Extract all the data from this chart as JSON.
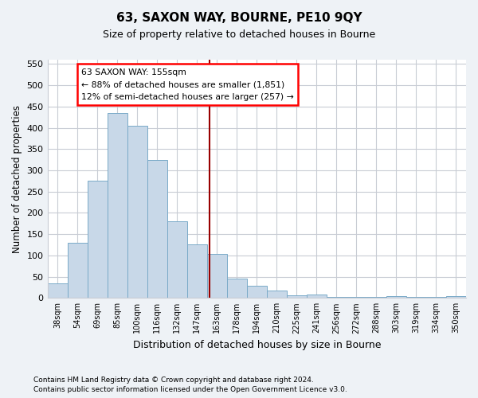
{
  "title": "63, SAXON WAY, BOURNE, PE10 9QY",
  "subtitle": "Size of property relative to detached houses in Bourne",
  "xlabel": "Distribution of detached houses by size in Bourne",
  "ylabel": "Number of detached properties",
  "bar_labels": [
    "38sqm",
    "54sqm",
    "69sqm",
    "85sqm",
    "100sqm",
    "116sqm",
    "132sqm",
    "147sqm",
    "163sqm",
    "178sqm",
    "194sqm",
    "210sqm",
    "225sqm",
    "241sqm",
    "256sqm",
    "272sqm",
    "288sqm",
    "303sqm",
    "319sqm",
    "334sqm",
    "350sqm"
  ],
  "bar_values": [
    35,
    130,
    275,
    435,
    405,
    325,
    180,
    125,
    103,
    45,
    28,
    17,
    7,
    8,
    3,
    2,
    2,
    5,
    2,
    2,
    5
  ],
  "bar_color": "#c8d8e8",
  "bar_edgecolor": "#7aaac8",
  "vline_x_index": 7.65,
  "annotation_text_line1": "63 SAXON WAY: 155sqm",
  "annotation_text_line2": "← 88% of detached houses are smaller (1,851)",
  "annotation_text_line3": "12% of semi-detached houses are larger (257) →",
  "annotation_box_color": "white",
  "annotation_box_edgecolor": "red",
  "vline_color": "#990000",
  "ylim": [
    0,
    560
  ],
  "yticks": [
    0,
    50,
    100,
    150,
    200,
    250,
    300,
    350,
    400,
    450,
    500,
    550
  ],
  "footnote1": "Contains HM Land Registry data © Crown copyright and database right 2024.",
  "footnote2": "Contains public sector information licensed under the Open Government Licence v3.0.",
  "bg_color": "#eef2f6",
  "plot_bg_color": "#ffffff",
  "grid_color": "#c8ccd4"
}
